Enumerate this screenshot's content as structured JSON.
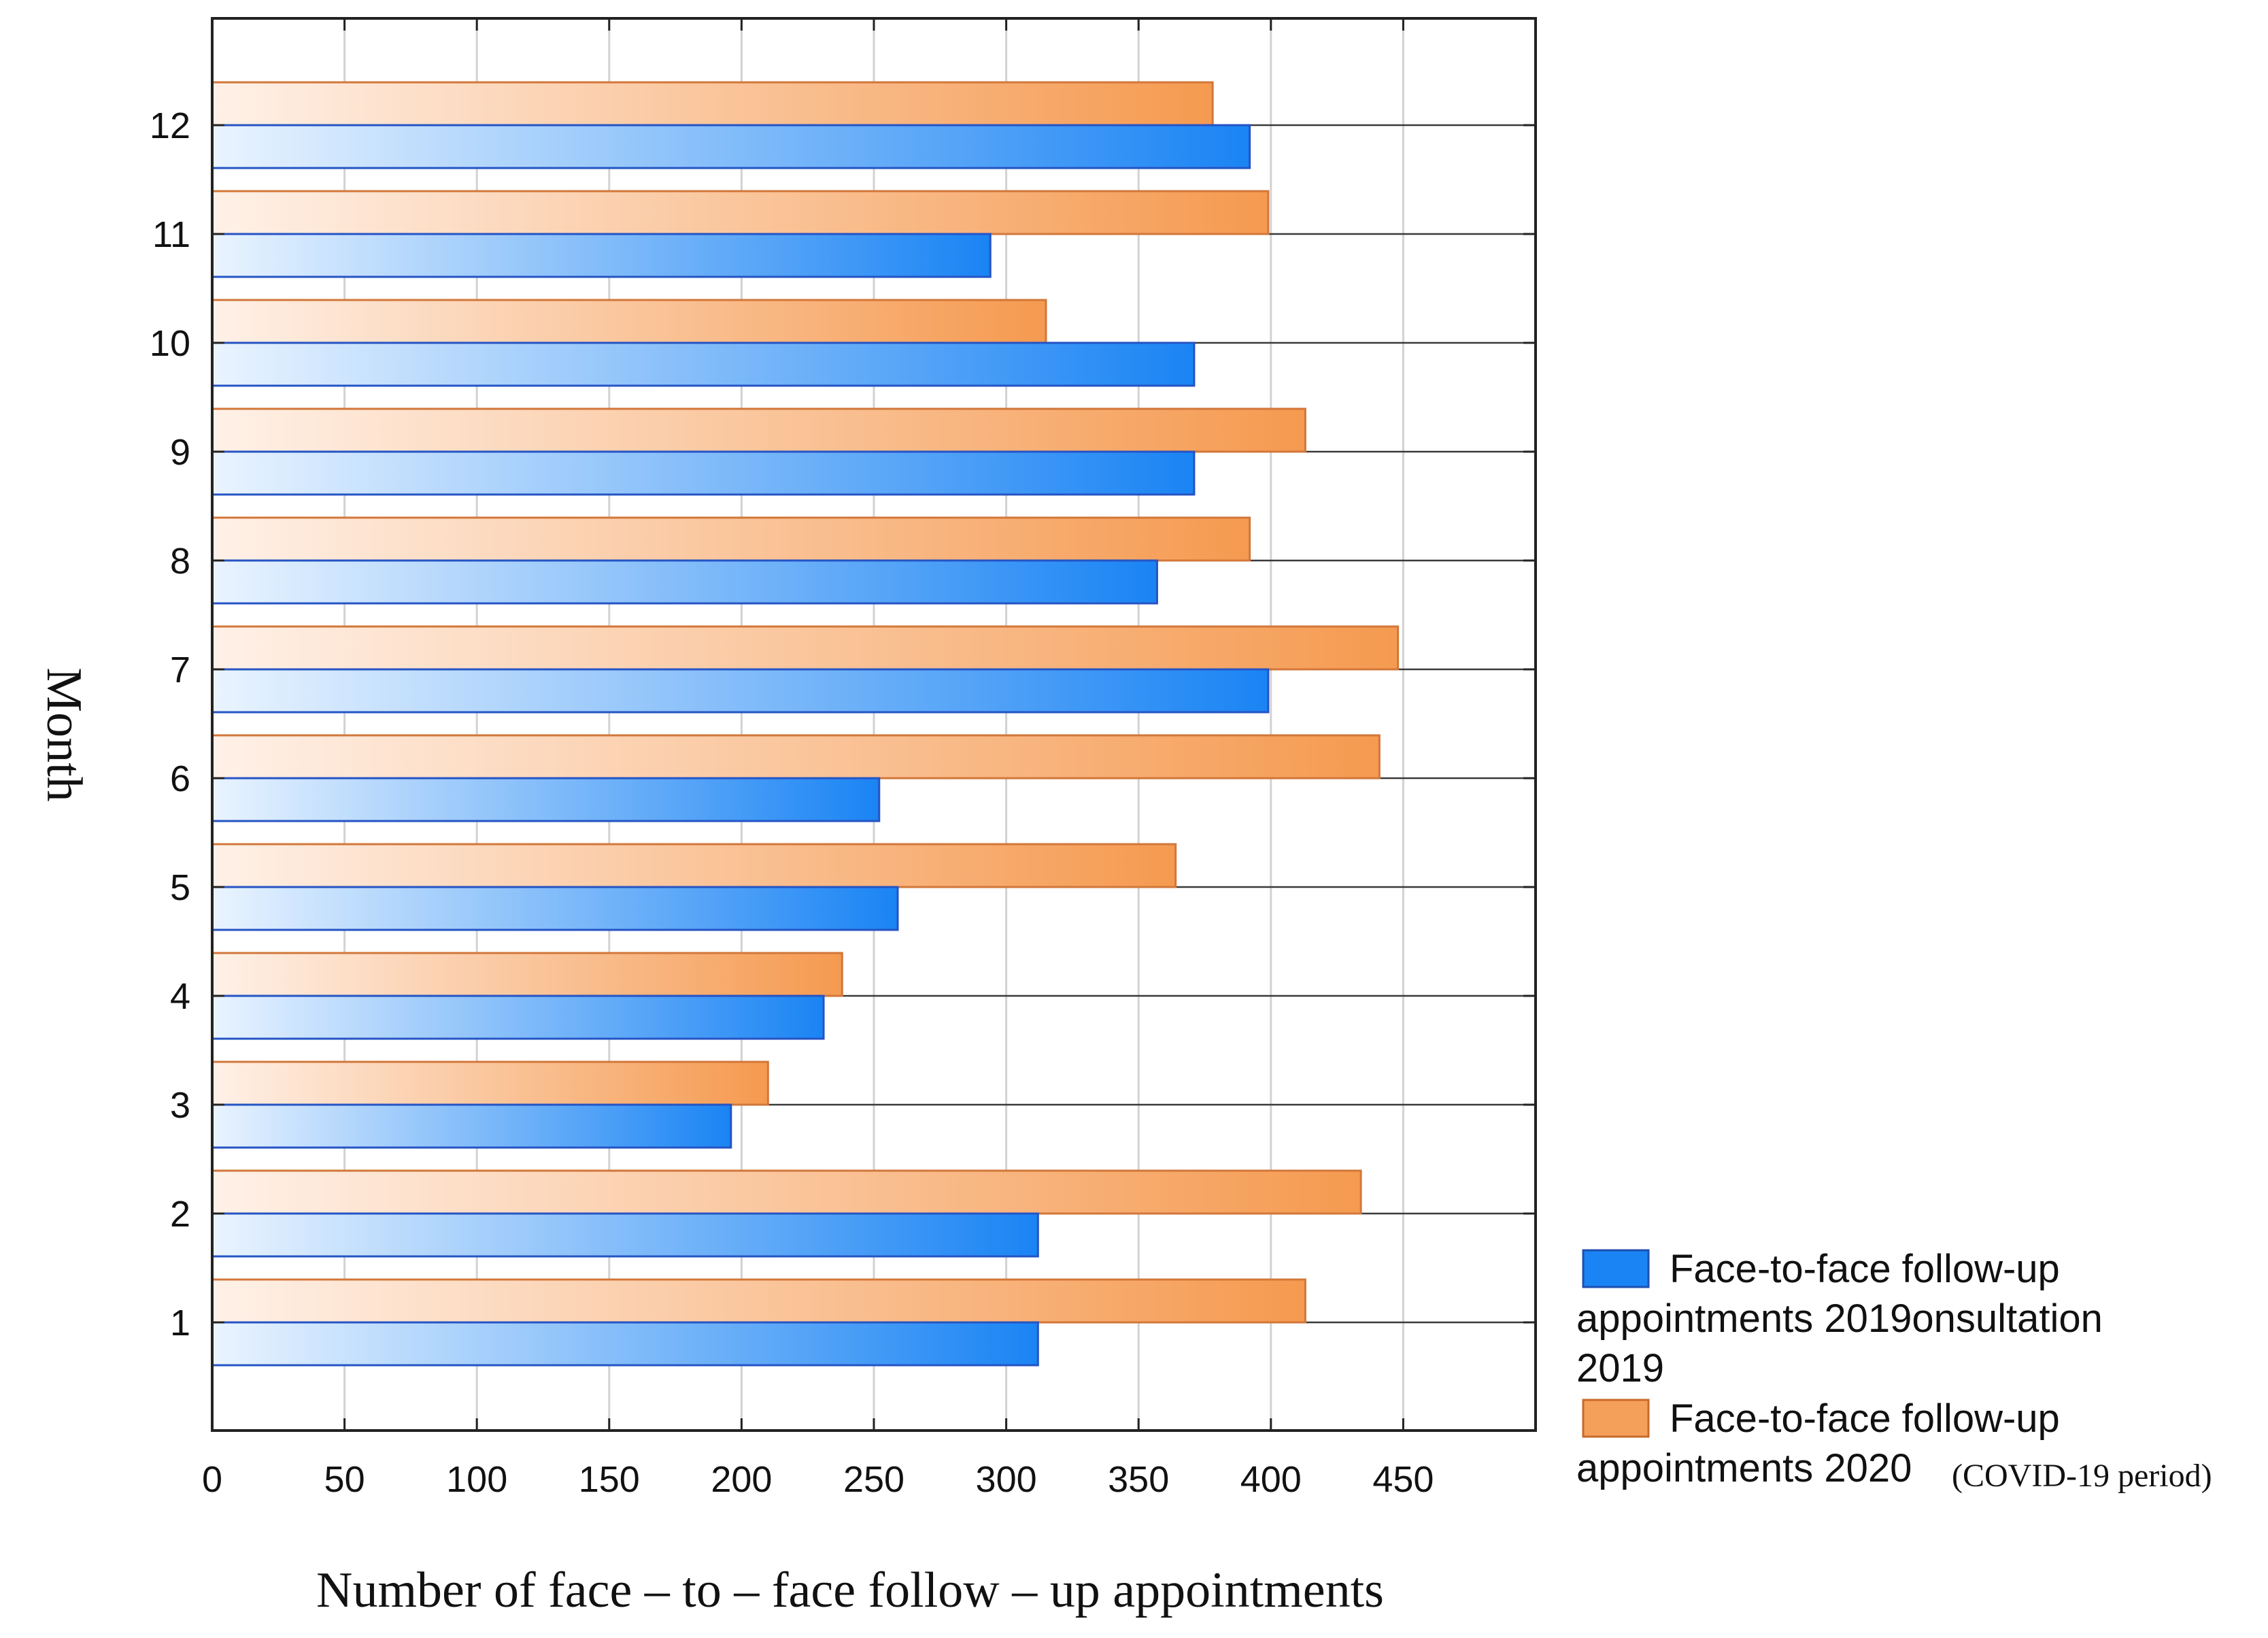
{
  "chart_data": {
    "type": "bar",
    "orientation": "horizontal",
    "title": "",
    "xlabel": "Number of face – to – face follow – up appointments",
    "ylabel": "Month",
    "xlim": [
      0,
      500
    ],
    "xticks": [
      0,
      50,
      100,
      150,
      200,
      250,
      300,
      350,
      400,
      450
    ],
    "categories": [
      "1",
      "2",
      "3",
      "4",
      "5",
      "6",
      "7",
      "8",
      "9",
      "10",
      "11",
      "12"
    ],
    "grid": true,
    "legend_position": "right-bottom",
    "series": [
      {
        "name": "Face-to-face follow-up appointments 2019onsultation 2019",
        "legend_lines": [
          "Face-to-face follow-up",
          "appointments 2019onsultation",
          "2019"
        ],
        "color": "#1f85f5",
        "values": [
          312,
          312,
          196,
          231,
          259,
          252,
          399,
          357,
          371,
          371,
          294,
          392
        ]
      },
      {
        "name": "Face-to-face follow-up appointments 2020 (COVID-19 period)",
        "legend_lines": [
          "Face-to-face follow-up",
          "appointments 2020"
        ],
        "legend_note": "(COVID-19 period)",
        "color": "#f5a05a",
        "values": [
          413,
          434,
          210,
          238,
          364,
          441,
          448,
          392,
          413,
          315,
          399,
          378
        ]
      }
    ]
  }
}
